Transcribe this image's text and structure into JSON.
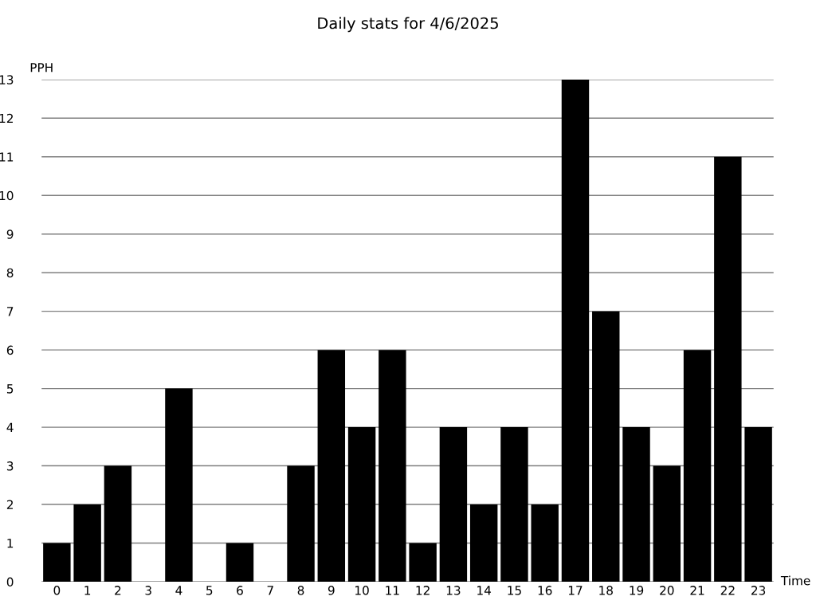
{
  "chart_data": {
    "type": "bar",
    "title": "Daily stats for 4/6/2025",
    "xlabel": "Time",
    "ylabel": "PPH",
    "categories": [
      "0",
      "1",
      "2",
      "3",
      "4",
      "5",
      "6",
      "7",
      "8",
      "9",
      "10",
      "11",
      "12",
      "13",
      "14",
      "15",
      "16",
      "17",
      "18",
      "19",
      "20",
      "21",
      "22",
      "23"
    ],
    "values": [
      1,
      2,
      3,
      0,
      5,
      0,
      1,
      0,
      3,
      6,
      4,
      6,
      1,
      4,
      2,
      4,
      2,
      13,
      7,
      4,
      3,
      6,
      11,
      4
    ],
    "color": "#000000",
    "ylim": [
      0,
      13
    ],
    "yticks": [
      0,
      1,
      2,
      3,
      4,
      5,
      6,
      7,
      8,
      9,
      10,
      11,
      12,
      13
    ],
    "grid": "y",
    "legend": false
  }
}
